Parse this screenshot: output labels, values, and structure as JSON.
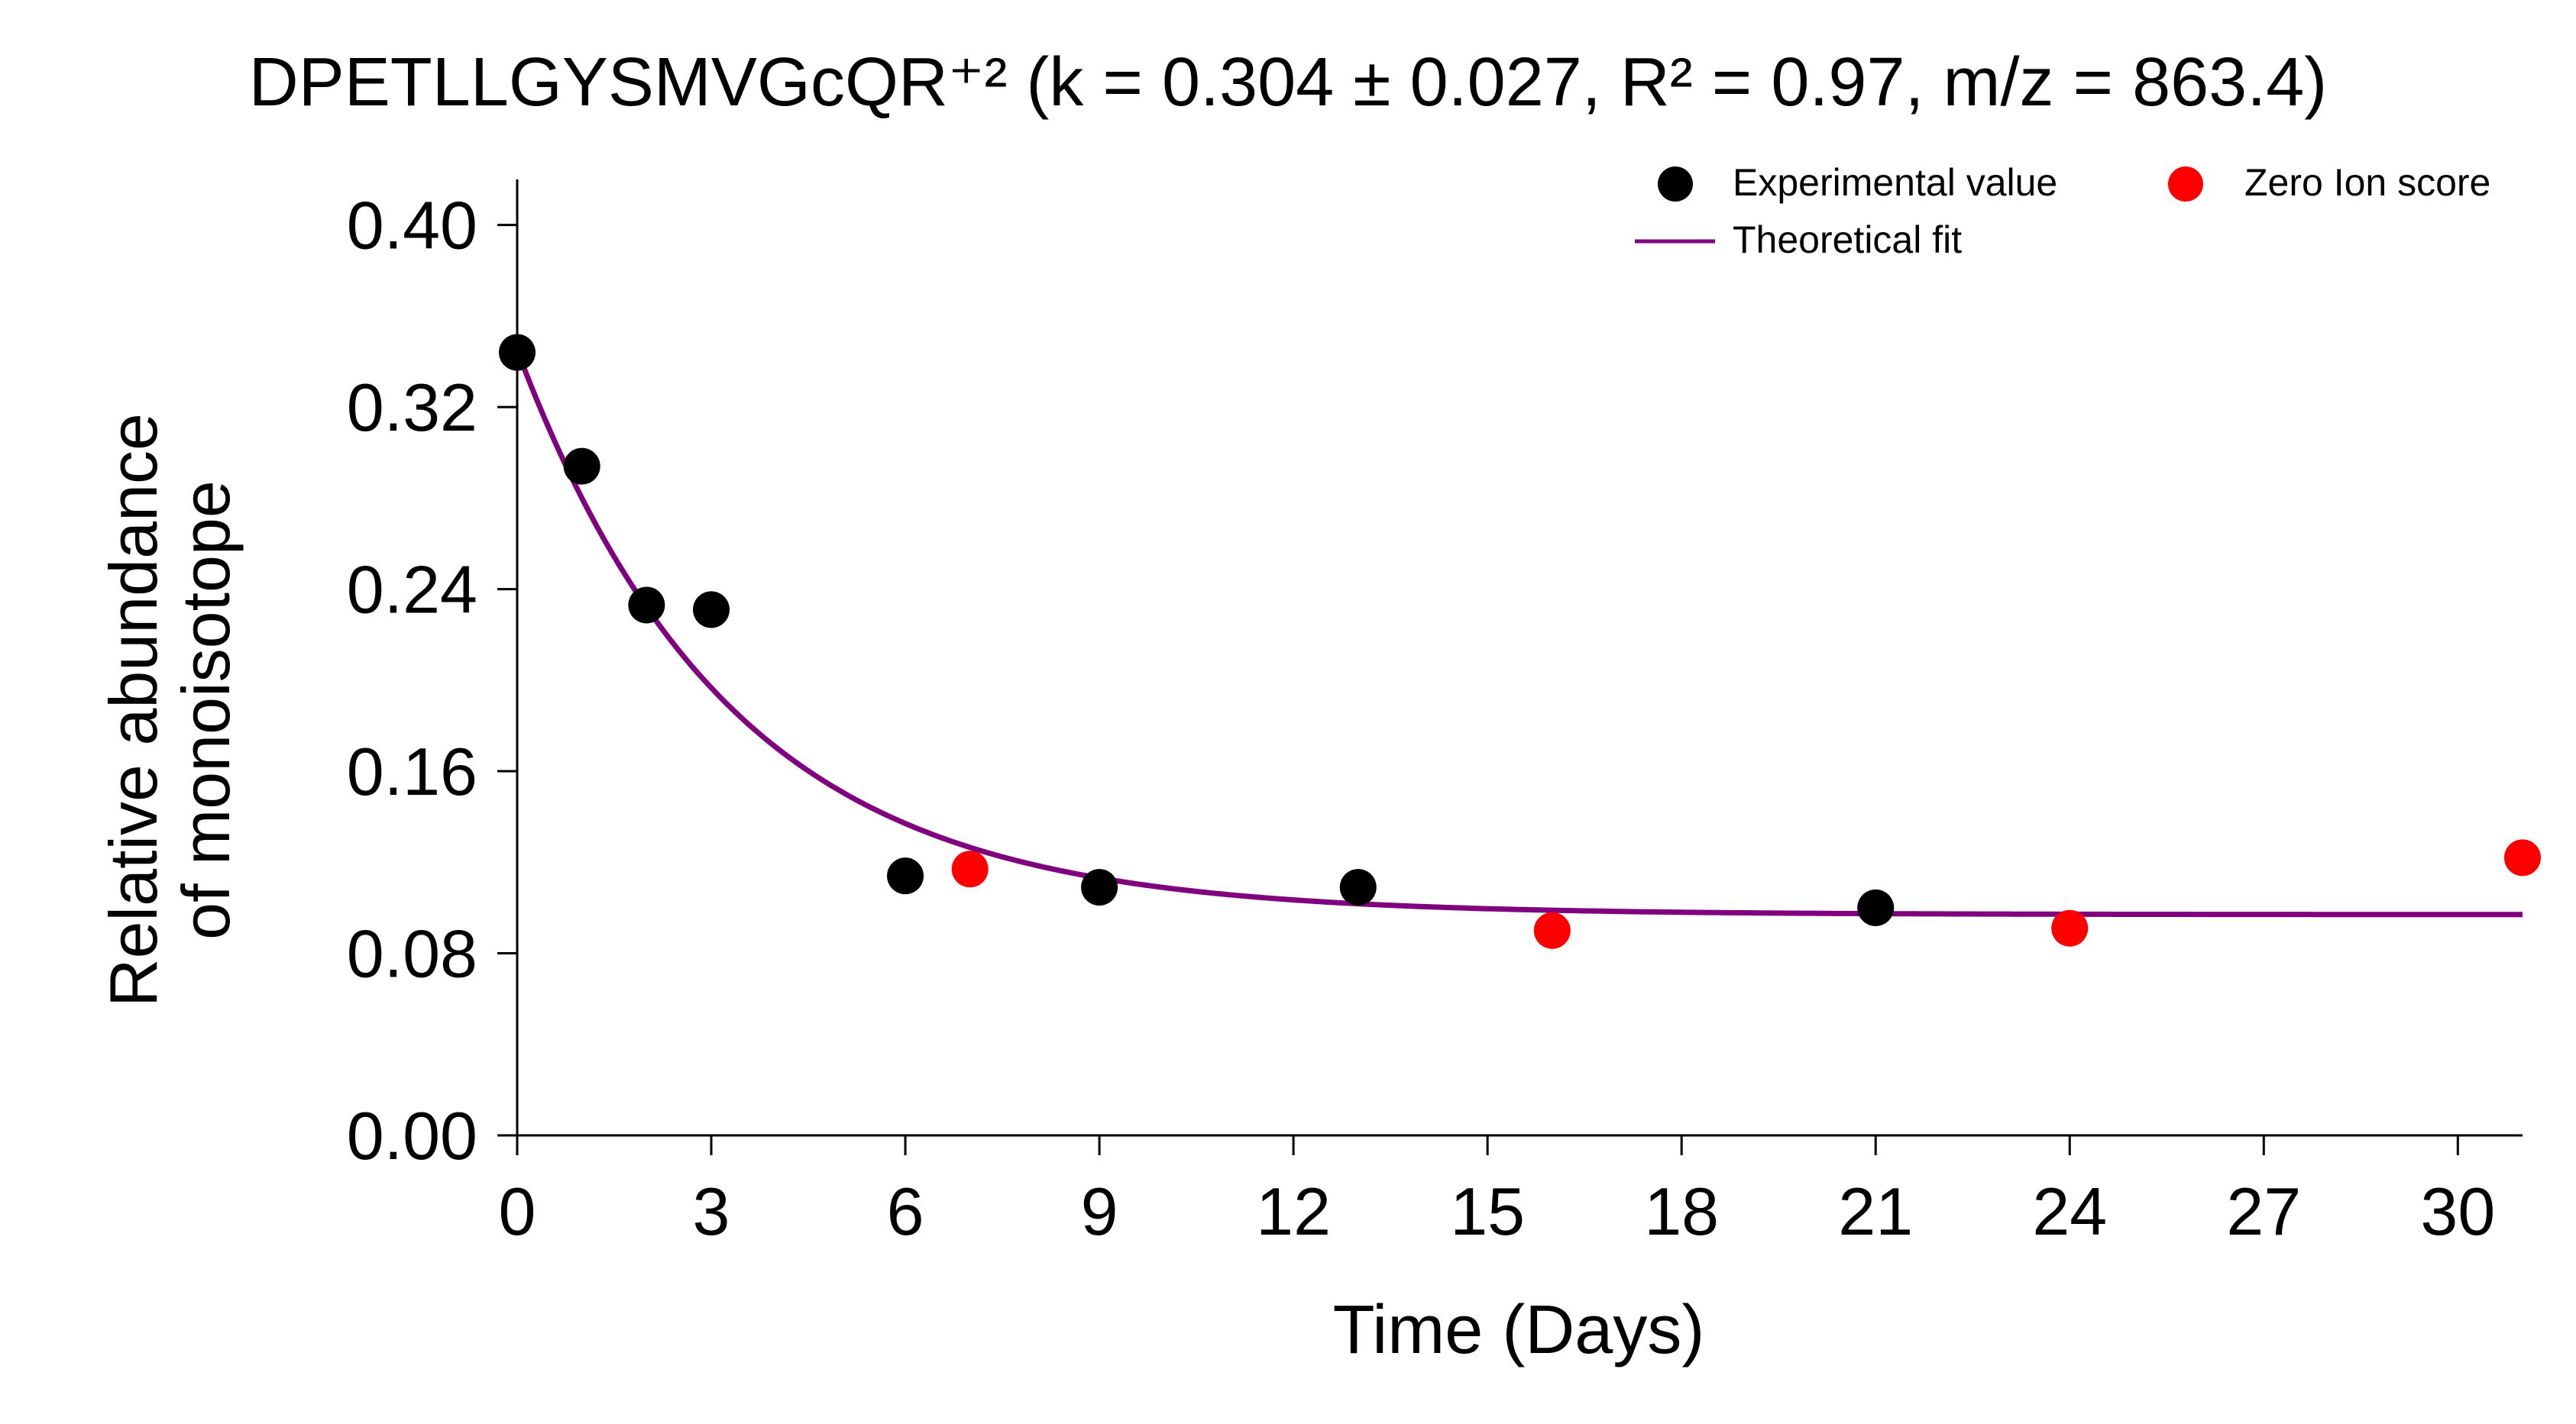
{
  "colors": {
    "experimental": "#000000",
    "zero_ion": "#ff0000",
    "fit": "#800080",
    "axis": "#000000",
    "background": "#ffffff"
  },
  "chart_data": {
    "type": "scatter",
    "title": "DPETLLGYSMVGcQR⁺² (k = 0.304 ± 0.027, R² = 0.97, m/z = 863.4)",
    "xlabel": "Time (Days)",
    "ylabel": "Relative abundance\nof monoisotope",
    "ylabel_lines": [
      "Relative abundance",
      "of monoisotope"
    ],
    "xlim": [
      0,
      31
    ],
    "ylim": [
      0,
      0.42
    ],
    "xticks": [
      0,
      3,
      6,
      9,
      12,
      15,
      18,
      21,
      24,
      27,
      30
    ],
    "xtick_labels": [
      "0",
      "3",
      "6",
      "9",
      "12",
      "15",
      "18",
      "21",
      "24",
      "27",
      "30"
    ],
    "yticks": [
      0.0,
      0.08,
      0.16,
      0.24,
      0.32,
      0.4
    ],
    "ytick_labels": [
      "0.00",
      "0.08",
      "0.16",
      "0.24",
      "0.32",
      "0.40"
    ],
    "grid": false,
    "legend_position": "top-right",
    "legend": {
      "experimental": "Experimental value",
      "zero_ion": "Zero Ion score",
      "fit": "Theoretical fit"
    },
    "series": [
      {
        "name": "Experimental value",
        "type": "scatter",
        "x": [
          0,
          1,
          2,
          3,
          6,
          9,
          13,
          21
        ],
        "y": [
          0.344,
          0.294,
          0.233,
          0.231,
          0.114,
          0.109,
          0.109,
          0.1
        ]
      },
      {
        "name": "Zero Ion score",
        "type": "scatter",
        "x": [
          7,
          16,
          24,
          31
        ],
        "y": [
          0.117,
          0.09,
          0.091,
          0.122
        ]
      },
      {
        "name": "Theoretical fit",
        "type": "line",
        "model": {
          "form": "exponential_decay",
          "y0": 0.345,
          "plateau": 0.097,
          "k": 0.304
        },
        "x_range": [
          0,
          31
        ]
      }
    ]
  }
}
